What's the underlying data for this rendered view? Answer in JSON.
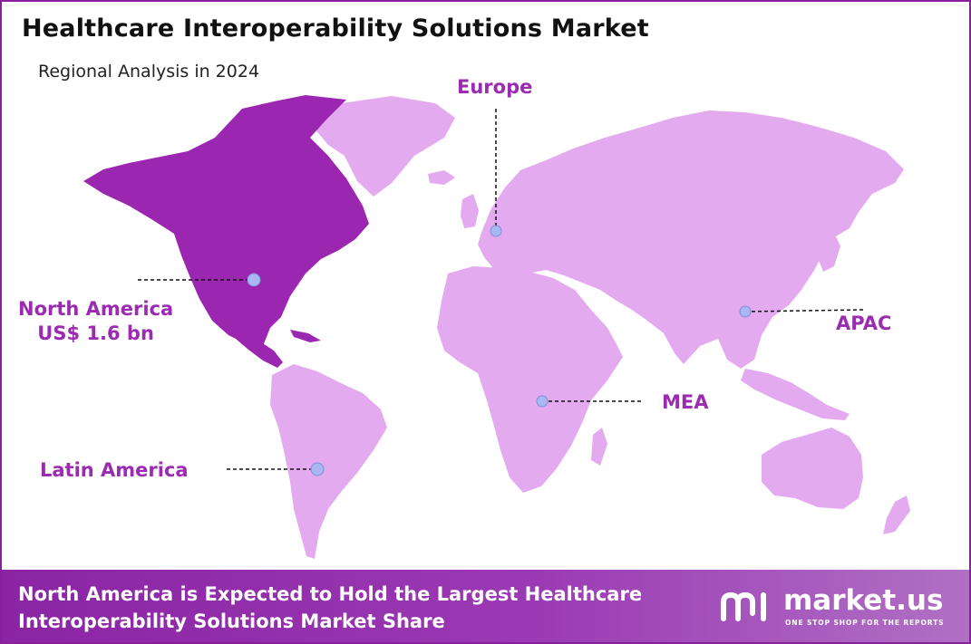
{
  "title": "Healthcare Interoperability Solutions Market",
  "subtitle": "Regional Analysis in 2024",
  "regions": {
    "europe": {
      "name": "Europe"
    },
    "north_america": {
      "name": "North America",
      "value": "US$ 1.6 bn"
    },
    "apac": {
      "name": "APAC"
    },
    "mea": {
      "name": "MEA"
    },
    "latin_america": {
      "name": "Latin America"
    }
  },
  "banner": {
    "line1": "North America is Expected to Hold the Largest Healthcare",
    "line2": "Interoperability Solutions Market Share"
  },
  "logo": {
    "name": "market.us",
    "tagline": "ONE STOP SHOP FOR THE REPORTS"
  },
  "colors": {
    "highlight_region": "#9b27b0",
    "other_regions": "#e4aaf0",
    "label_text": "#9b2bb0",
    "marker": "#a9b8f0",
    "banner_bg": "#8a24a3",
    "frame": "#8a1f9c"
  }
}
